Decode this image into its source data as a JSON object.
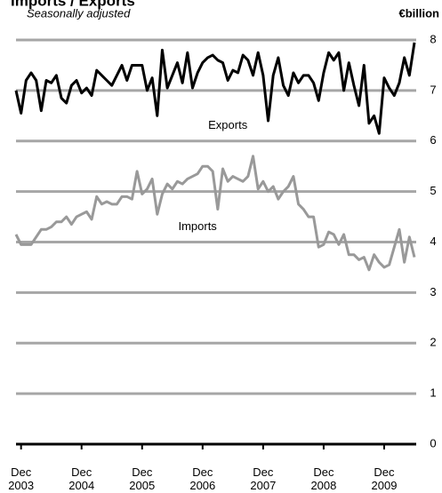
{
  "chart_data": {
    "type": "line",
    "title": "Imports / Exports",
    "subtitle": "Seasonally adjusted",
    "y_label": "€billion",
    "categories": [
      null,
      "Dec 2003",
      null,
      null,
      null,
      null,
      null,
      null,
      null,
      null,
      null,
      null,
      null,
      "Dec 2004",
      null,
      null,
      null,
      null,
      null,
      null,
      null,
      null,
      null,
      null,
      null,
      "Dec 2005",
      null,
      null,
      null,
      null,
      null,
      null,
      null,
      null,
      null,
      null,
      null,
      "Dec 2006",
      null,
      null,
      null,
      null,
      null,
      null,
      null,
      null,
      null,
      null,
      null,
      "Dec 2007",
      null,
      null,
      null,
      null,
      null,
      null,
      null,
      null,
      null,
      null,
      null,
      "Dec 2008",
      null,
      null,
      null,
      null,
      null,
      null,
      null,
      null,
      null,
      null,
      null,
      "Dec 2009",
      null,
      null,
      null,
      null,
      null,
      null
    ],
    "series": [
      {
        "name": "Exports",
        "color": "#000000",
        "values": [
          7.0,
          6.55,
          7.2,
          7.35,
          7.2,
          6.6,
          7.2,
          7.15,
          7.3,
          6.85,
          6.75,
          7.1,
          7.2,
          6.95,
          7.05,
          6.9,
          7.4,
          7.3,
          7.2,
          7.1,
          7.3,
          7.5,
          7.2,
          7.5,
          7.5,
          7.5,
          7.0,
          7.25,
          6.5,
          7.8,
          7.05,
          7.3,
          7.55,
          7.15,
          7.75,
          7.05,
          7.35,
          7.55,
          7.65,
          7.7,
          7.6,
          7.55,
          7.2,
          7.4,
          7.35,
          7.7,
          7.6,
          7.3,
          7.75,
          7.3,
          6.4,
          7.3,
          7.65,
          7.1,
          6.9,
          7.35,
          7.15,
          7.3,
          7.3,
          7.15,
          6.8,
          7.35,
          7.75,
          7.6,
          7.75,
          7.0,
          7.55,
          7.1,
          6.7,
          7.5,
          6.35,
          6.5,
          6.15,
          7.25,
          7.05,
          6.9,
          7.15,
          7.65,
          7.3,
          7.95
        ]
      },
      {
        "name": "Imports",
        "color": "#999999",
        "values": [
          4.15,
          3.95,
          3.95,
          3.95,
          4.1,
          4.25,
          4.25,
          4.3,
          4.4,
          4.4,
          4.5,
          4.35,
          4.5,
          4.55,
          4.6,
          4.45,
          4.9,
          4.75,
          4.8,
          4.75,
          4.75,
          4.9,
          4.9,
          4.85,
          5.4,
          4.95,
          5.05,
          5.25,
          4.55,
          4.95,
          5.15,
          5.05,
          5.2,
          5.15,
          5.25,
          5.3,
          5.35,
          5.5,
          5.5,
          5.4,
          4.65,
          5.45,
          5.2,
          5.3,
          5.25,
          5.2,
          5.3,
          5.7,
          5.05,
          5.2,
          5.0,
          5.1,
          4.85,
          5.0,
          5.1,
          5.3,
          4.75,
          4.65,
          4.5,
          4.5,
          3.9,
          3.95,
          4.2,
          4.15,
          3.95,
          4.15,
          3.75,
          3.75,
          3.65,
          3.7,
          3.45,
          3.75,
          3.6,
          3.5,
          3.55,
          3.9,
          4.25,
          3.6,
          4.1,
          3.7
        ]
      }
    ],
    "annotations": [
      {
        "text": "Exports",
        "x": 42,
        "y": 6.3
      },
      {
        "text": "Imports",
        "x": 36,
        "y": 4.3
      }
    ],
    "ylim": [
      0,
      8
    ],
    "yticks": [
      0,
      1,
      2,
      3,
      4,
      5,
      6,
      7,
      8
    ],
    "grid": true
  }
}
